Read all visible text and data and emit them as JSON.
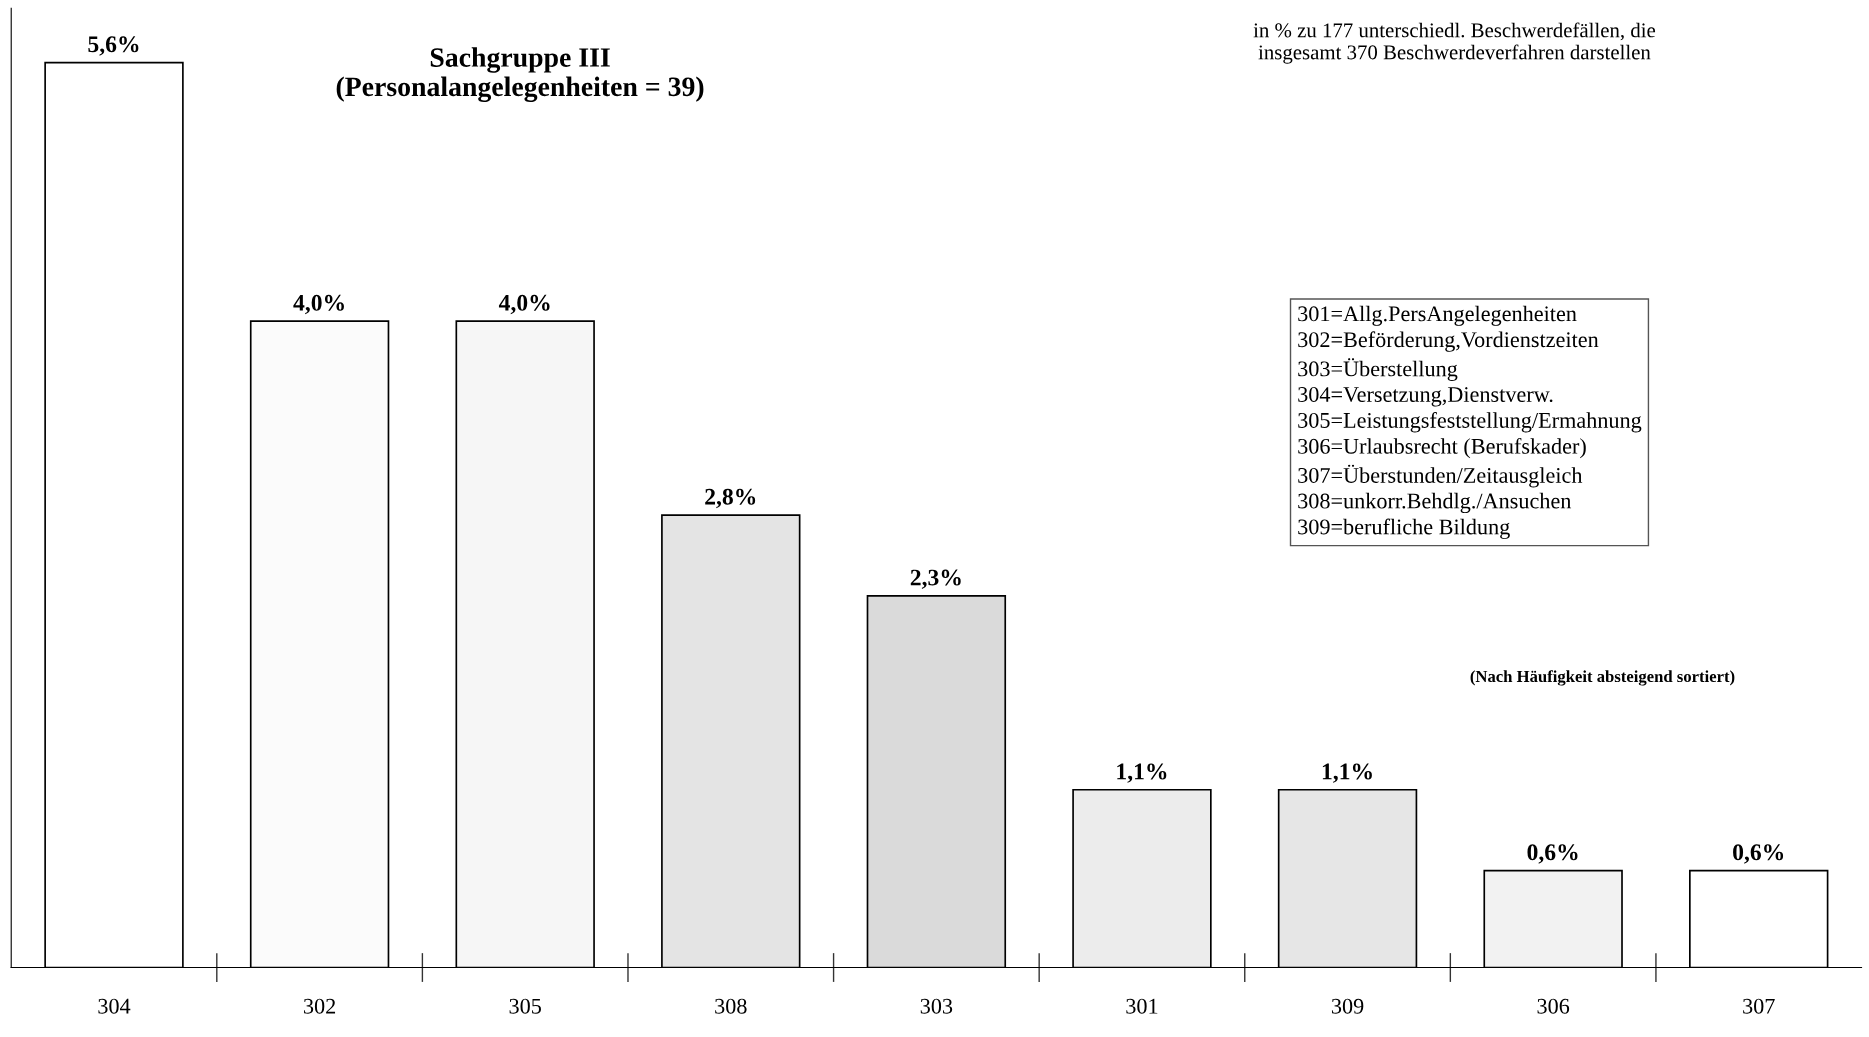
{
  "chart_data": {
    "type": "bar",
    "title": "Sachgruppe III\n(Personalangelegenheiten = 39)",
    "categories": [
      "304",
      "302",
      "305",
      "308",
      "303",
      "301",
      "309",
      "306",
      "307"
    ],
    "values": [
      5.6,
      4.0,
      4.0,
      2.8,
      2.3,
      1.1,
      1.1,
      0.6,
      0.6
    ],
    "value_labels": [
      "5,6%",
      "4,0%",
      "4,0%",
      "2,8%",
      "2,3%",
      "1,1%",
      "1,1%",
      "0,6%",
      "0,6%"
    ],
    "colors": [
      "#ffffff",
      "#fbfbfb",
      "#f6f6f6",
      "#e4e4e4",
      "#dadada",
      "#ececec",
      "#e6e6e6",
      "#f2f2f2",
      "#ffffff"
    ],
    "annotations": [
      "in % zu 177 unterschiedl. Beschwerdefällen, die\ninsgesamt 370 Beschwerdeverfahren darstellen",
      "301=Allg.PersAngelegenheiten\n302=Beförderung,Vordienstzeiten\n303=Überstellung\n304=Versetzung,Dienstverw.\n305=Leistungsfeststellung/Ermahnung\n306=Urlaubsrecht (Berufskader)\n307=Überstunden/Zeitausgleich\n308=unkorr.Behdlg./Ansuchen\n309=berufliche Bildung",
      "(Nach Häufigkeit absteigend sortiert)"
    ]
  }
}
